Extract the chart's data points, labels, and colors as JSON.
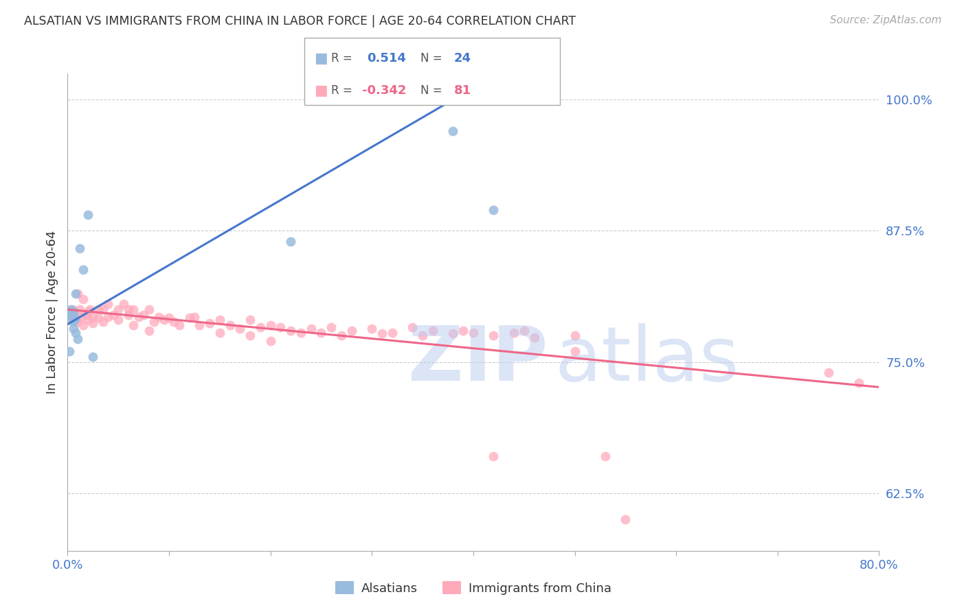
{
  "title": "ALSATIAN VS IMMIGRANTS FROM CHINA IN LABOR FORCE | AGE 20-64 CORRELATION CHART",
  "source": "Source: ZipAtlas.com",
  "ylabel": "In Labor Force | Age 20-64",
  "xmin": 0.0,
  "xmax": 0.8,
  "ymin": 0.57,
  "ymax": 1.025,
  "yticks": [
    0.625,
    0.75,
    0.875,
    1.0
  ],
  "ytick_labels": [
    "62.5%",
    "75.0%",
    "87.5%",
    "100.0%"
  ],
  "xticks": [
    0.0,
    0.1,
    0.2,
    0.3,
    0.4,
    0.5,
    0.6,
    0.7,
    0.8
  ],
  "blue_R": 0.514,
  "blue_N": 24,
  "pink_R": -0.342,
  "pink_N": 81,
  "blue_color": "#99BBDD",
  "pink_color": "#FFAABB",
  "blue_line_color": "#4477CC",
  "pink_line_color": "#EE6688",
  "tick_label_color": "#4477CC",
  "watermark_color": "#BBCCEE",
  "legend_label_blue": "Alsatians",
  "legend_label_pink": "Immigrants from China",
  "blue_line_x0": 0.0,
  "blue_line_y0": 0.786,
  "blue_line_x1": 0.38,
  "blue_line_y1": 1.0,
  "pink_line_x0": 0.0,
  "pink_line_y0": 0.8,
  "pink_line_x1": 0.8,
  "pink_line_y1": 0.726,
  "blue_scatter_x": [
    0.002,
    0.003,
    0.003,
    0.003,
    0.004,
    0.004,
    0.004,
    0.005,
    0.005,
    0.005,
    0.005,
    0.006,
    0.006,
    0.007,
    0.008,
    0.008,
    0.01,
    0.012,
    0.015,
    0.02,
    0.025,
    0.22,
    0.38,
    0.42
  ],
  "blue_scatter_y": [
    0.76,
    0.795,
    0.798,
    0.8,
    0.793,
    0.795,
    0.797,
    0.788,
    0.79,
    0.793,
    0.796,
    0.782,
    0.798,
    0.791,
    0.778,
    0.815,
    0.772,
    0.858,
    0.838,
    0.89,
    0.755,
    0.865,
    0.97,
    0.895
  ],
  "pink_scatter_x": [
    0.005,
    0.006,
    0.007,
    0.008,
    0.01,
    0.01,
    0.012,
    0.013,
    0.015,
    0.015,
    0.018,
    0.02,
    0.02,
    0.022,
    0.025,
    0.025,
    0.03,
    0.03,
    0.035,
    0.035,
    0.04,
    0.04,
    0.045,
    0.05,
    0.05,
    0.055,
    0.06,
    0.06,
    0.065,
    0.065,
    0.07,
    0.075,
    0.08,
    0.08,
    0.085,
    0.09,
    0.095,
    0.1,
    0.105,
    0.11,
    0.12,
    0.125,
    0.13,
    0.14,
    0.15,
    0.15,
    0.16,
    0.17,
    0.18,
    0.18,
    0.19,
    0.2,
    0.2,
    0.21,
    0.22,
    0.23,
    0.24,
    0.25,
    0.26,
    0.27,
    0.28,
    0.3,
    0.31,
    0.32,
    0.34,
    0.35,
    0.36,
    0.38,
    0.39,
    0.4,
    0.42,
    0.44,
    0.46,
    0.5,
    0.42,
    0.45,
    0.5,
    0.53,
    0.55,
    0.75,
    0.78
  ],
  "pink_scatter_y": [
    0.8,
    0.793,
    0.795,
    0.79,
    0.788,
    0.815,
    0.8,
    0.793,
    0.81,
    0.785,
    0.795,
    0.798,
    0.79,
    0.8,
    0.793,
    0.787,
    0.792,
    0.8,
    0.8,
    0.788,
    0.805,
    0.793,
    0.795,
    0.8,
    0.79,
    0.805,
    0.795,
    0.8,
    0.8,
    0.785,
    0.793,
    0.795,
    0.8,
    0.78,
    0.788,
    0.793,
    0.79,
    0.792,
    0.788,
    0.785,
    0.792,
    0.793,
    0.785,
    0.787,
    0.79,
    0.778,
    0.785,
    0.782,
    0.79,
    0.775,
    0.783,
    0.785,
    0.77,
    0.783,
    0.78,
    0.778,
    0.782,
    0.778,
    0.783,
    0.775,
    0.78,
    0.782,
    0.777,
    0.778,
    0.783,
    0.775,
    0.78,
    0.777,
    0.78,
    0.778,
    0.775,
    0.778,
    0.773,
    0.76,
    0.66,
    0.78,
    0.775,
    0.66,
    0.6,
    0.74,
    0.73
  ]
}
